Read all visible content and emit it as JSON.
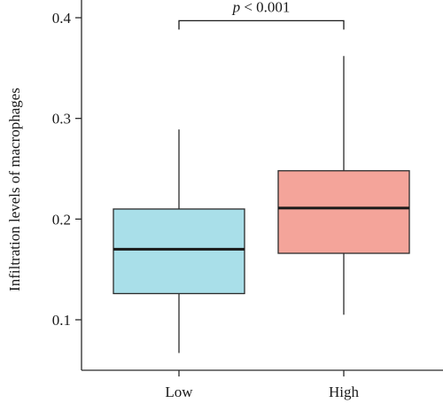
{
  "chart_data": {
    "type": "boxplot",
    "ylabel": "Infiltration levels of macrophages",
    "xlabel": "",
    "ylim": [
      0.045,
      0.41
    ],
    "yticks": [
      0.1,
      0.2,
      0.3,
      0.4
    ],
    "ytick_labels": [
      "0.1",
      "0.2",
      "0.3",
      "0.4"
    ],
    "categories": [
      "Low",
      "High"
    ],
    "boxes": [
      {
        "category": "Low",
        "min": 0.067,
        "q1": 0.126,
        "median": 0.17,
        "q3": 0.21,
        "max": 0.289,
        "color": "#a9dfe9"
      },
      {
        "category": "High",
        "min": 0.105,
        "q1": 0.166,
        "median": 0.211,
        "q3": 0.248,
        "max": 0.362,
        "color": "#f4a49a"
      }
    ],
    "annotation": {
      "prefix": "p",
      "text": " < 0.001",
      "bracket_y": 0.397
    },
    "grid": false,
    "legend": "none"
  },
  "colors": {
    "low_box": "#a9dfe9",
    "high_box": "#f4a49a",
    "stroke": "#2b2b2b"
  }
}
